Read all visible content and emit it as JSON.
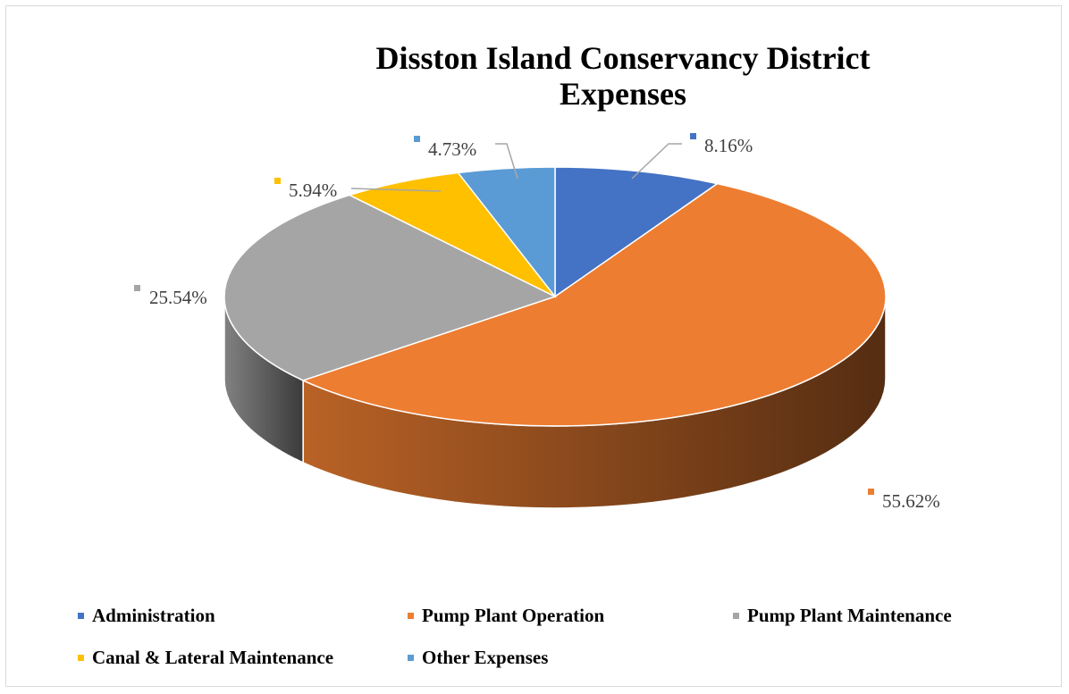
{
  "chart_data": {
    "type": "pie",
    "style": "3d",
    "title": "Disston Island Conservancy District Expenses",
    "title_lines": [
      "Disston Island Conservancy District",
      "Expenses"
    ],
    "legend_position": "bottom",
    "slices": [
      {
        "name": "Administration",
        "value": 8.16,
        "label": "8.16%",
        "color": "#4472c4"
      },
      {
        "name": "Pump Plant Operation",
        "value": 55.62,
        "label": "55.62%",
        "color": "#ed7d31"
      },
      {
        "name": "Pump Plant Maintenance",
        "value": 25.54,
        "label": "25.54%",
        "color": "#a5a5a5"
      },
      {
        "name": "Canal & Lateral Maintenance",
        "value": 5.94,
        "label": "5.94%",
        "color": "#ffc000"
      },
      {
        "name": "Other Expenses",
        "value": 4.73,
        "label": "4.73%",
        "color": "#5b9bd5"
      }
    ]
  }
}
